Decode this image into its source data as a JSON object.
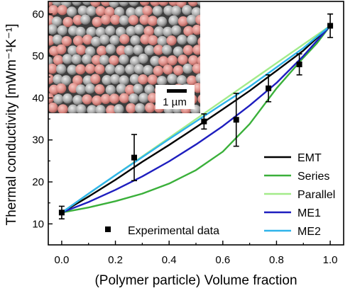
{
  "chart_data": {
    "type": "line",
    "xlabel": "(Polymer particle) Volume fraction",
    "ylabel": "Thermal conductivity [mWm⁻¹K⁻¹]",
    "xlim": [
      -0.05,
      1.05
    ],
    "ylim": [
      5,
      63
    ],
    "x_ticks": [
      "0.0",
      "0.2",
      "0.4",
      "0.6",
      "0.8",
      "1.0"
    ],
    "x_tick_values": [
      0,
      0.2,
      0.4,
      0.6,
      0.8,
      1.0
    ],
    "y_ticks": [
      "10",
      "20",
      "30",
      "40",
      "50",
      "60"
    ],
    "y_tick_values": [
      10,
      20,
      30,
      40,
      50,
      60
    ],
    "grid": false,
    "legend_position": "bottom-right",
    "series": [
      {
        "name": "EMT",
        "color": "#000000",
        "x": [
          0,
          0.1,
          0.2,
          0.3,
          0.4,
          0.5,
          0.6,
          0.7,
          0.8,
          0.9,
          1.0
        ],
        "y": [
          12.7,
          16.5,
          20.5,
          24.8,
          28.8,
          33.0,
          37.3,
          41.7,
          46.5,
          51.3,
          57.2
        ]
      },
      {
        "name": "Series",
        "color": "#3ab03a",
        "x": [
          0,
          0.1,
          0.2,
          0.3,
          0.4,
          0.5,
          0.6,
          0.7,
          0.8,
          0.9,
          0.95,
          1.0
        ],
        "y": [
          12.7,
          13.9,
          15.4,
          17.2,
          19.6,
          22.8,
          27.2,
          33.8,
          42.3,
          49.6,
          53.0,
          57.2
        ]
      },
      {
        "name": "Parallel",
        "color": "#a3eb8a",
        "x": [
          0,
          1.0
        ],
        "y": [
          12.7,
          57.2
        ]
      },
      {
        "name": "ME1",
        "color": "#1e1ebf",
        "x": [
          0,
          0.1,
          0.2,
          0.3,
          0.4,
          0.5,
          0.6,
          0.7,
          0.8,
          0.9,
          1.0
        ],
        "y": [
          12.7,
          15.2,
          18.1,
          21.3,
          24.9,
          28.9,
          33.3,
          38.2,
          43.6,
          50.0,
          57.2
        ]
      },
      {
        "name": "ME2",
        "color": "#2fb4ea",
        "x": [
          0,
          0.1,
          0.2,
          0.3,
          0.4,
          0.5,
          0.6,
          0.7,
          0.8,
          0.9,
          1.0
        ],
        "y": [
          12.7,
          17.2,
          21.6,
          25.9,
          30.2,
          34.4,
          38.6,
          42.7,
          47.3,
          51.9,
          57.2
        ]
      }
    ],
    "experimental": {
      "name": "Experimental data",
      "color": "#000000",
      "x": [
        0,
        0.27,
        0.53,
        0.65,
        0.77,
        0.885,
        1.0
      ],
      "y": [
        12.7,
        25.8,
        34.4,
        34.8,
        42.3,
        48.0,
        57.2
      ],
      "err": [
        1.5,
        5.5,
        1.8,
        6.3,
        3.2,
        2.5,
        2.8
      ]
    },
    "inset": {
      "scale_bar_label": "1 µm"
    }
  }
}
